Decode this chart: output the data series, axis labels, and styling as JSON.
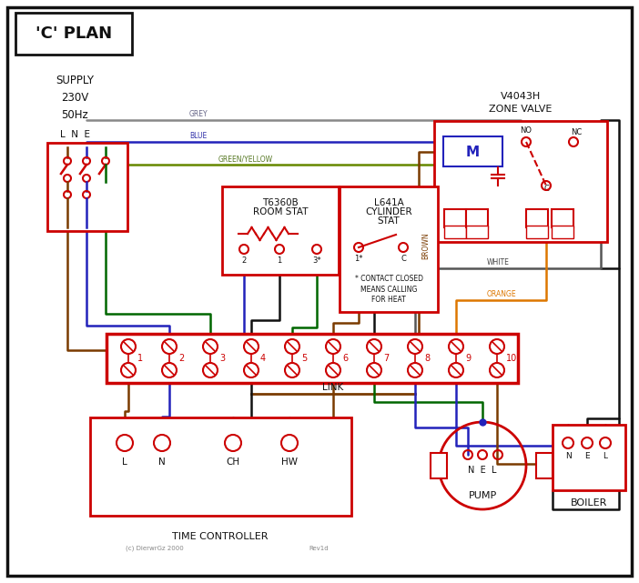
{
  "title": "'C' PLAN",
  "bg": "#ffffff",
  "red": "#cc0000",
  "blue": "#2222bb",
  "green": "#006600",
  "grey": "#888888",
  "brown": "#7a3b00",
  "orange": "#dd7700",
  "black": "#111111",
  "gy": "#668800",
  "white_wire": "#555555",
  "zone_valve": "V4043H\nZONE VALVE",
  "room_stat_l1": "T6360B",
  "room_stat_l2": "ROOM STAT",
  "cyl_stat_l1": "L641A",
  "cyl_stat_l2": "CYLINDER",
  "cyl_stat_l3": "STAT",
  "tc_label": "TIME CONTROLLER",
  "pump_label": "PUMP",
  "boiler_label": "BOILER",
  "supply_label": "SUPPLY\n230V\n50Hz",
  "contact_note": "* CONTACT CLOSED\nMEANS CALLING\nFOR HEAT",
  "copyright": "(c) DierwrGz 2000",
  "revid": "Rev1d",
  "link_label": "LINK",
  "grey_label": "GREY",
  "blue_label": "BLUE",
  "gy_label": "GREEN/YELLOW",
  "brown_label": "BROWN",
  "white_label": "WHITE",
  "orange_label": "ORANGE"
}
